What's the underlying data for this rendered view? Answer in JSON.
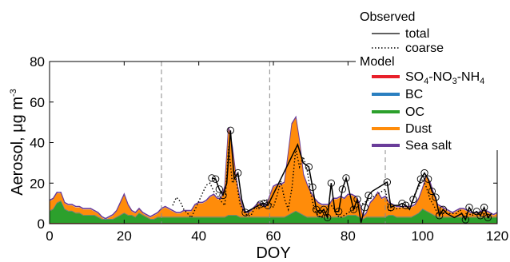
{
  "chart_data": {
    "type": "area",
    "xlabel": "DOY",
    "ylabel": "Aerosol, μg m",
    "ylabel_sup": "-3",
    "xlim": [
      0,
      120
    ],
    "ylim": [
      0,
      80
    ],
    "xticks": [
      0,
      20,
      40,
      60,
      80,
      100,
      120
    ],
    "yticks": [
      0,
      20,
      40,
      60,
      80
    ],
    "grid": false,
    "vlines": [
      30,
      59,
      90
    ],
    "legend": {
      "placement": "top-right",
      "observed_title": "Observed",
      "observed_total": "total",
      "observed_coarse": "coarse",
      "model_title": "Model",
      "sulfate_parts": [
        "SO",
        "4",
        "-NO",
        "3",
        "-NH",
        "4"
      ],
      "bc": "BC",
      "oc": "OC",
      "dust": "Dust",
      "seasalt": "Sea salt"
    },
    "colors": {
      "sulfate": "#e8202a",
      "bc": "#2a7fc0",
      "oc": "#2ca02c",
      "dust": "#ff8c0a",
      "seasalt": "#6a3d9a",
      "observed": "#000000"
    },
    "model_x": [
      0,
      1,
      2,
      3,
      4,
      5,
      6,
      7,
      8,
      9,
      10,
      11,
      12,
      13,
      14,
      15,
      16,
      17,
      18,
      19,
      20,
      21,
      22,
      23,
      24,
      25,
      26,
      27,
      28,
      29,
      30,
      31,
      32,
      33,
      34,
      35,
      36,
      37,
      38,
      39,
      40,
      41,
      42,
      43,
      44,
      45,
      46,
      47,
      48,
      49,
      50,
      51,
      52,
      53,
      54,
      55,
      56,
      57,
      58,
      59,
      60,
      61,
      62,
      63,
      64,
      65,
      66,
      67,
      68,
      69,
      70,
      71,
      72,
      73,
      74,
      75,
      76,
      77,
      78,
      79,
      80,
      81,
      82,
      83,
      84,
      85,
      86,
      87,
      88,
      89,
      90,
      91,
      92,
      93,
      94,
      95,
      96,
      97,
      98,
      99,
      100,
      101,
      102,
      103,
      104,
      105,
      106,
      107,
      108,
      109,
      110,
      111,
      112,
      113,
      114,
      115,
      116,
      117,
      118,
      119,
      120
    ],
    "model_total": [
      11,
      12,
      15,
      15,
      10,
      9,
      9,
      8,
      8,
      7,
      7,
      7,
      6,
      5,
      3,
      2,
      3,
      4,
      6,
      10,
      14,
      9,
      6,
      5,
      7,
      5,
      4,
      3,
      4,
      5,
      7,
      8,
      7,
      6,
      5,
      5,
      6,
      6,
      6,
      9,
      10,
      10,
      11,
      13,
      14,
      12,
      12,
      18,
      47,
      37,
      22,
      12,
      6,
      5,
      6,
      8,
      10,
      9,
      8,
      13,
      18,
      19,
      19,
      20,
      34,
      49,
      52,
      40,
      24,
      19,
      15,
      12,
      10,
      9,
      9,
      9,
      12,
      12,
      13,
      12,
      14,
      14,
      13,
      10,
      3,
      5,
      10,
      12,
      15,
      12,
      13,
      10,
      9,
      8,
      8,
      8,
      8,
      8,
      9,
      12,
      17,
      23,
      20,
      14,
      9,
      8,
      7,
      6,
      5,
      6,
      7,
      7,
      6,
      5,
      5,
      5,
      6,
      6,
      5,
      4,
      5
    ],
    "model_oc": [
      6,
      7,
      10,
      11,
      7,
      6,
      6,
      5,
      5,
      4,
      4,
      4,
      4,
      3,
      2,
      2,
      2,
      2,
      3,
      4,
      5,
      4,
      4,
      3,
      5,
      4,
      3,
      2,
      2,
      3,
      3,
      3,
      3,
      3,
      3,
      3,
      3,
      3,
      3,
      3,
      3,
      3,
      3,
      3,
      3,
      3,
      3,
      3,
      4,
      4,
      4,
      3,
      3,
      3,
      3,
      3,
      3,
      3,
      3,
      3,
      3,
      3,
      3,
      3,
      4,
      5,
      6,
      5,
      4,
      3,
      3,
      3,
      3,
      3,
      3,
      3,
      3,
      3,
      3,
      3,
      4,
      4,
      4,
      3,
      2,
      3,
      3,
      3,
      3,
      3,
      3,
      4,
      4,
      3,
      3,
      3,
      3,
      3,
      4,
      5,
      7,
      6,
      5,
      4,
      3,
      3,
      3,
      3,
      3,
      3,
      3,
      3,
      3,
      3,
      3,
      3,
      3,
      3,
      3,
      3,
      3
    ],
    "observed_total": [
      [
        43.5,
        22.5
      ],
      [
        44.5,
        22
      ],
      [
        45.5,
        17
      ],
      [
        46.5,
        14
      ],
      [
        47.5,
        20
      ],
      [
        48.5,
        46
      ],
      [
        49.5,
        22
      ],
      [
        50.5,
        25
      ],
      [
        51.5,
        12
      ],
      [
        52.5,
        5.5
      ],
      [
        56.5,
        9.5
      ],
      [
        57.5,
        10
      ],
      [
        58.5,
        9
      ],
      [
        66.5,
        39
      ],
      [
        68,
        30
      ],
      [
        69.5,
        28
      ],
      [
        70.5,
        18
      ],
      [
        71.5,
        7
      ],
      [
        72.5,
        5
      ],
      [
        73.5,
        7
      ],
      [
        74.5,
        3
      ],
      [
        75.5,
        20
      ],
      [
        76.5,
        6
      ],
      [
        77.5,
        6
      ],
      [
        78.5,
        17
      ],
      [
        79.5,
        22.5
      ],
      [
        81.5,
        7
      ],
      [
        82.5,
        12
      ],
      [
        83.5,
        0.5
      ],
      [
        84.5,
        8
      ],
      [
        85.5,
        14
      ],
      [
        86.5,
        16
      ],
      [
        90.5,
        20.5
      ],
      [
        91.5,
        8
      ],
      [
        92.5,
        9
      ],
      [
        93.5,
        9
      ],
      [
        94.5,
        10
      ],
      [
        95.5,
        9
      ],
      [
        96.5,
        7
      ],
      [
        97.5,
        12
      ],
      [
        98.5,
        17
      ],
      [
        99.5,
        22
      ],
      [
        100.5,
        25
      ],
      [
        101.5,
        22
      ],
      [
        102.5,
        16
      ],
      [
        103.5,
        13
      ],
      [
        104.5,
        4
      ],
      [
        105.5,
        7
      ],
      [
        106.5,
        5
      ],
      [
        107.5,
        4
      ],
      [
        108.5,
        3
      ],
      [
        110.5,
        5
      ],
      [
        111.5,
        2
      ],
      [
        112.5,
        8
      ],
      [
        113.5,
        5
      ],
      [
        114.5,
        6
      ],
      [
        115.5,
        4
      ],
      [
        116.5,
        8
      ],
      [
        117.5,
        3
      ],
      [
        118.5,
        5
      ]
    ],
    "observed_coarse": [
      [
        33,
        9
      ],
      [
        34,
        13
      ],
      [
        35,
        11
      ],
      [
        36,
        7
      ],
      [
        37,
        5
      ],
      [
        38,
        3
      ],
      [
        42,
        19
      ],
      [
        43,
        20
      ],
      [
        44,
        16
      ],
      [
        45,
        14
      ],
      [
        46,
        11
      ],
      [
        47,
        9
      ],
      [
        48,
        38
      ],
      [
        49,
        20
      ],
      [
        50,
        22
      ],
      [
        51,
        10
      ],
      [
        52,
        6
      ],
      [
        53,
        4
      ],
      [
        54,
        4
      ],
      [
        55,
        8
      ],
      [
        56,
        7
      ],
      [
        57,
        10
      ],
      [
        58,
        12
      ],
      [
        59,
        11
      ],
      [
        60,
        8
      ],
      [
        61,
        14
      ],
      [
        62,
        21
      ],
      [
        63,
        12
      ],
      [
        64,
        7
      ],
      [
        65,
        18
      ],
      [
        66,
        37
      ],
      [
        67,
        28
      ],
      [
        68,
        33
      ],
      [
        69,
        27
      ],
      [
        70,
        15
      ],
      [
        71,
        7
      ],
      [
        72,
        4
      ],
      [
        73,
        3
      ],
      [
        74,
        5
      ],
      [
        75,
        10
      ],
      [
        76,
        8
      ],
      [
        77,
        4
      ],
      [
        78,
        3
      ],
      [
        90,
        17
      ],
      [
        91,
        6
      ],
      [
        92,
        7
      ],
      [
        95,
        8
      ],
      [
        97,
        10
      ],
      [
        98,
        15
      ],
      [
        99,
        18
      ],
      [
        100,
        22
      ],
      [
        101,
        18
      ],
      [
        102,
        12
      ],
      [
        103,
        9
      ],
      [
        104,
        5
      ],
      [
        109,
        5
      ],
      [
        110,
        7
      ],
      [
        111,
        3
      ],
      [
        112,
        6
      ],
      [
        113,
        4
      ],
      [
        115,
        5
      ],
      [
        116,
        3
      ],
      [
        117,
        6
      ],
      [
        118,
        2
      ]
    ],
    "observed_circles": [
      [
        43.5,
        22.5
      ],
      [
        44.5,
        22
      ],
      [
        45.5,
        17
      ],
      [
        46.5,
        14
      ],
      [
        48.5,
        46
      ],
      [
        50.5,
        25
      ],
      [
        52.5,
        5.5
      ],
      [
        56.5,
        9.5
      ],
      [
        57.5,
        10
      ],
      [
        58.5,
        9
      ],
      [
        69.5,
        28
      ],
      [
        70.5,
        18
      ],
      [
        71.5,
        7
      ],
      [
        72.5,
        5
      ],
      [
        73.5,
        7
      ],
      [
        74.5,
        3
      ],
      [
        75.5,
        20
      ],
      [
        77.5,
        6
      ],
      [
        78.5,
        17
      ],
      [
        79.5,
        22.5
      ],
      [
        81.5,
        7
      ],
      [
        82.5,
        12
      ],
      [
        84.5,
        8
      ],
      [
        85.5,
        14
      ],
      [
        90.5,
        20.5
      ],
      [
        91.5,
        8
      ],
      [
        94.5,
        10
      ],
      [
        95.5,
        9
      ],
      [
        97.5,
        12
      ],
      [
        99.5,
        22
      ],
      [
        100.5,
        25
      ],
      [
        101.5,
        22
      ],
      [
        102.5,
        16
      ],
      [
        103.5,
        13
      ],
      [
        104.5,
        4
      ],
      [
        105.5,
        7
      ],
      [
        111.5,
        2
      ],
      [
        112.5,
        8
      ],
      [
        114.5,
        6
      ],
      [
        115.5,
        4
      ],
      [
        116.5,
        8
      ],
      [
        117.5,
        3
      ]
    ]
  }
}
